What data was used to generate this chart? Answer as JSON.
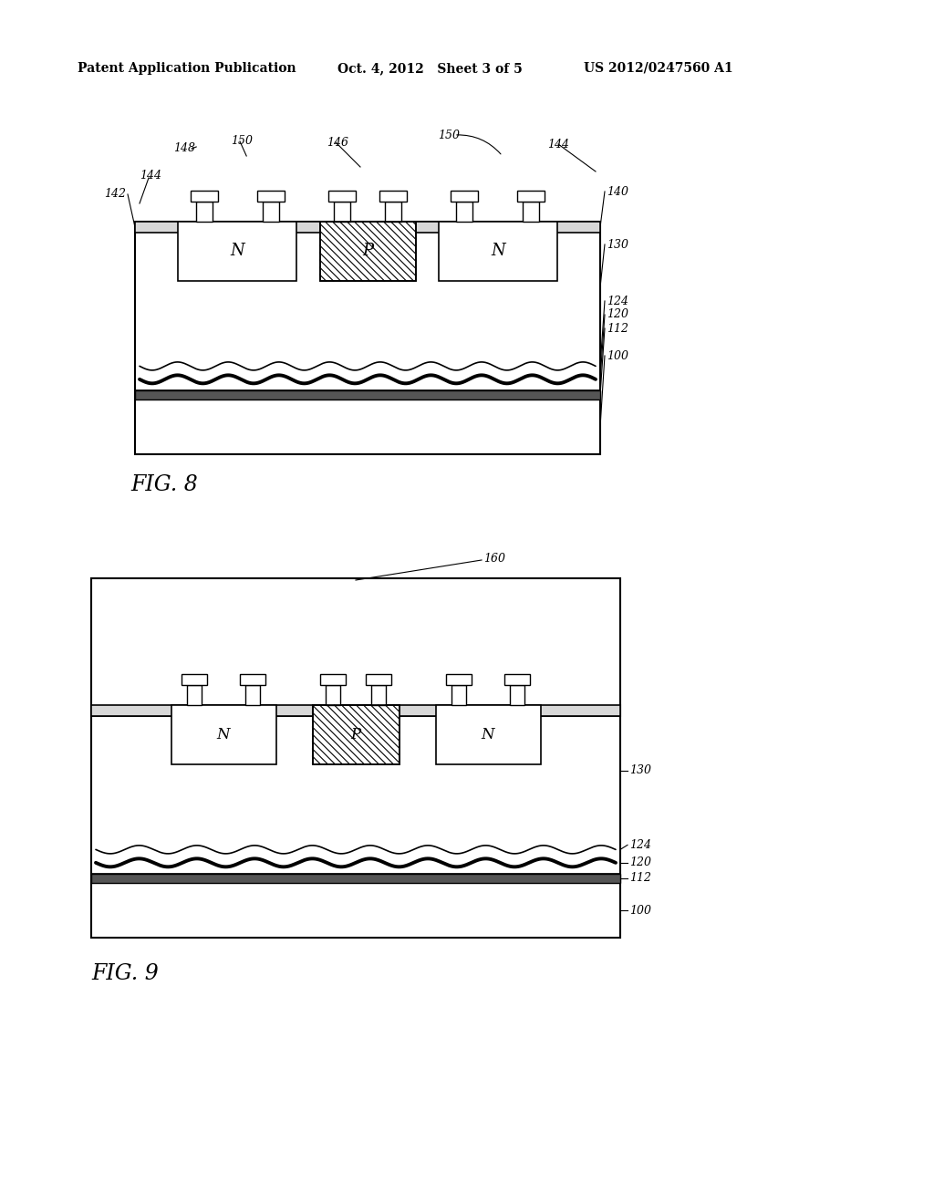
{
  "background_color": "#ffffff",
  "header_left": "Patent Application Publication",
  "header_mid": "Oct. 4, 2012   Sheet 3 of 5",
  "header_right": "US 2012/0247560 A1",
  "fig8_label": "FIG. 8",
  "fig9_label": "FIG. 9"
}
